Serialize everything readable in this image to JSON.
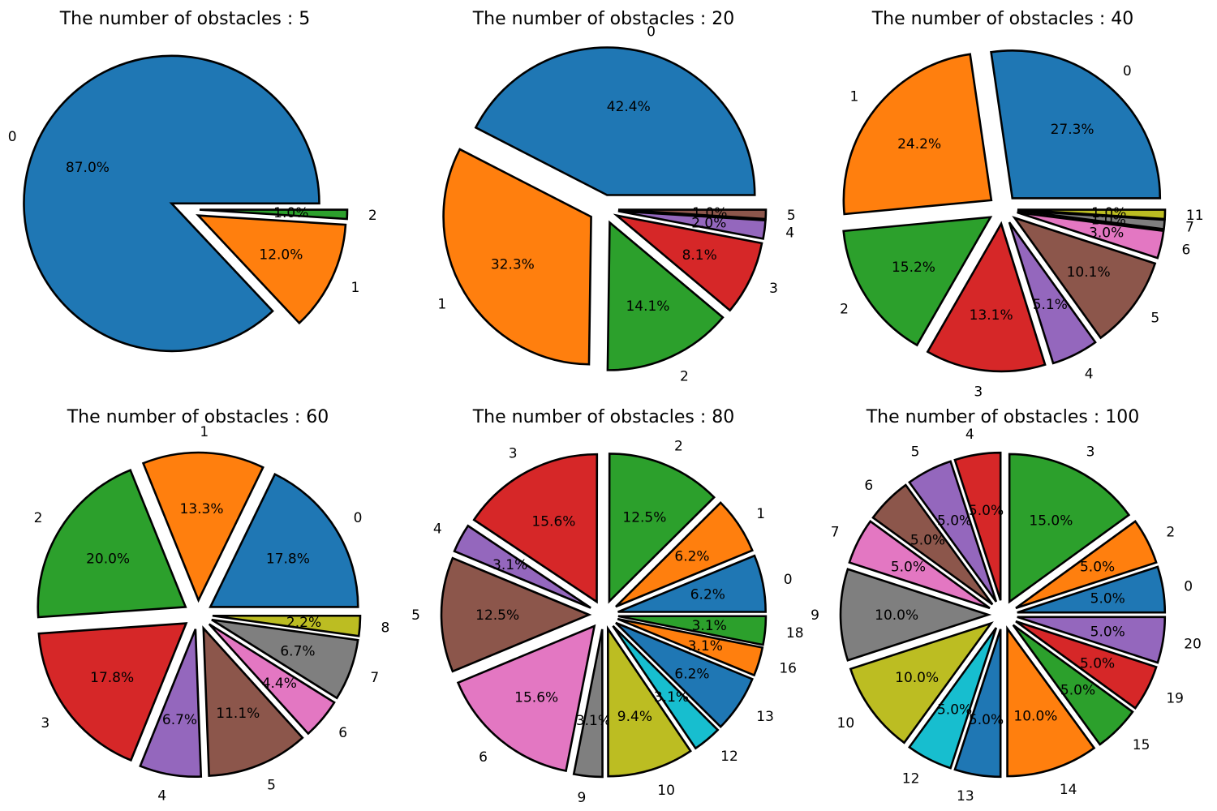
{
  "chart_data": [
    {
      "type": "pie",
      "title": "The number of obstacles : 5",
      "labels": [
        "0",
        "1",
        "2"
      ],
      "values": [
        87.0,
        12.0,
        1.0
      ],
      "pct_labels": [
        "87.0%",
        "12.0%",
        "1.0%"
      ],
      "colors": [
        "#1f77b4",
        "#ff7f0e",
        "#2ca02c"
      ]
    },
    {
      "type": "pie",
      "title": "The number of obstacles : 20",
      "labels": [
        "0",
        "1",
        "2",
        "3",
        "4",
        "5"
      ],
      "values": [
        42.4,
        32.3,
        14.1,
        8.1,
        2.0,
        1.0
      ],
      "pct_labels": [
        "42.4%",
        "32.3%",
        "14.1%",
        "8.1%",
        "2.0%",
        "1.0%"
      ],
      "colors": [
        "#1f77b4",
        "#ff7f0e",
        "#2ca02c",
        "#d62728",
        "#9467bd",
        "#8c564b"
      ]
    },
    {
      "type": "pie",
      "title": "The number of obstacles : 40",
      "labels": [
        "0",
        "1",
        "2",
        "3",
        "4",
        "5",
        "6",
        "7",
        "11"
      ],
      "values": [
        27.3,
        24.2,
        15.2,
        13.1,
        5.1,
        10.1,
        3.0,
        1.0,
        1.0
      ],
      "pct_labels": [
        "27.3%",
        "24.2%",
        "15.2%",
        "13.1%",
        "5.1%",
        "10.1%",
        "3.0%",
        "1.0%",
        "1.0%"
      ],
      "colors": [
        "#1f77b4",
        "#ff7f0e",
        "#2ca02c",
        "#d62728",
        "#9467bd",
        "#8c564b",
        "#e377c2",
        "#7f7f7f",
        "#bcbd22"
      ]
    },
    {
      "type": "pie",
      "title": "The number of obstacles : 60",
      "labels": [
        "0",
        "1",
        "2",
        "3",
        "4",
        "5",
        "6",
        "7",
        "8"
      ],
      "values": [
        17.8,
        13.3,
        20.0,
        17.8,
        6.7,
        11.1,
        4.4,
        6.7,
        2.2
      ],
      "pct_labels": [
        "17.8%",
        "13.3%",
        "20.0%",
        "17.8%",
        "6.7%",
        "11.1%",
        "4.4%",
        "6.7%",
        "2.2%"
      ],
      "colors": [
        "#1f77b4",
        "#ff7f0e",
        "#2ca02c",
        "#d62728",
        "#9467bd",
        "#8c564b",
        "#e377c2",
        "#7f7f7f",
        "#bcbd22"
      ]
    },
    {
      "type": "pie",
      "title": "The number of obstacles : 80",
      "labels": [
        "0",
        "1",
        "2",
        "3",
        "4",
        "5",
        "6",
        "9",
        "10",
        "12",
        "13",
        "16",
        "18"
      ],
      "values": [
        6.2,
        6.2,
        12.5,
        15.6,
        3.1,
        12.5,
        15.6,
        3.1,
        9.4,
        3.1,
        6.2,
        3.1,
        3.1
      ],
      "pct_labels": [
        "6.2%",
        "6.2%",
        "12.5%",
        "15.6%",
        "3.1%",
        "12.5%",
        "15.6%",
        "3.1%",
        "9.4%",
        "3.1%",
        "6.2%",
        "3.1%",
        "3.1%"
      ],
      "colors": [
        "#1f77b4",
        "#ff7f0e",
        "#2ca02c",
        "#d62728",
        "#9467bd",
        "#8c564b",
        "#e377c2",
        "#7f7f7f",
        "#bcbd22",
        "#17becf",
        "#1f77b4",
        "#ff7f0e",
        "#2ca02c"
      ]
    },
    {
      "type": "pie",
      "title": "The number of obstacles : 100",
      "labels": [
        "0",
        "2",
        "3",
        "4",
        "5",
        "6",
        "7",
        "9",
        "10",
        "12",
        "13",
        "14",
        "15",
        "19",
        "20"
      ],
      "values": [
        5.0,
        5.0,
        15.0,
        5.0,
        5.0,
        5.0,
        5.0,
        10.0,
        10.0,
        5.0,
        5.0,
        10.0,
        5.0,
        5.0,
        5.0
      ],
      "pct_labels": [
        "5.0%",
        "5.0%",
        "15.0%",
        "5.0%",
        "5.0%",
        "5.0%",
        "5.0%",
        "10.0%",
        "10.0%",
        "5.0%",
        "5.0%",
        "10.0%",
        "5.0%",
        "5.0%",
        "5.0%"
      ],
      "colors": [
        "#1f77b4",
        "#ff7f0e",
        "#2ca02c",
        "#d62728",
        "#9467bd",
        "#8c564b",
        "#e377c2",
        "#7f7f7f",
        "#bcbd22",
        "#17becf",
        "#1f77b4",
        "#ff7f0e",
        "#2ca02c",
        "#d62728",
        "#9467bd"
      ]
    }
  ]
}
